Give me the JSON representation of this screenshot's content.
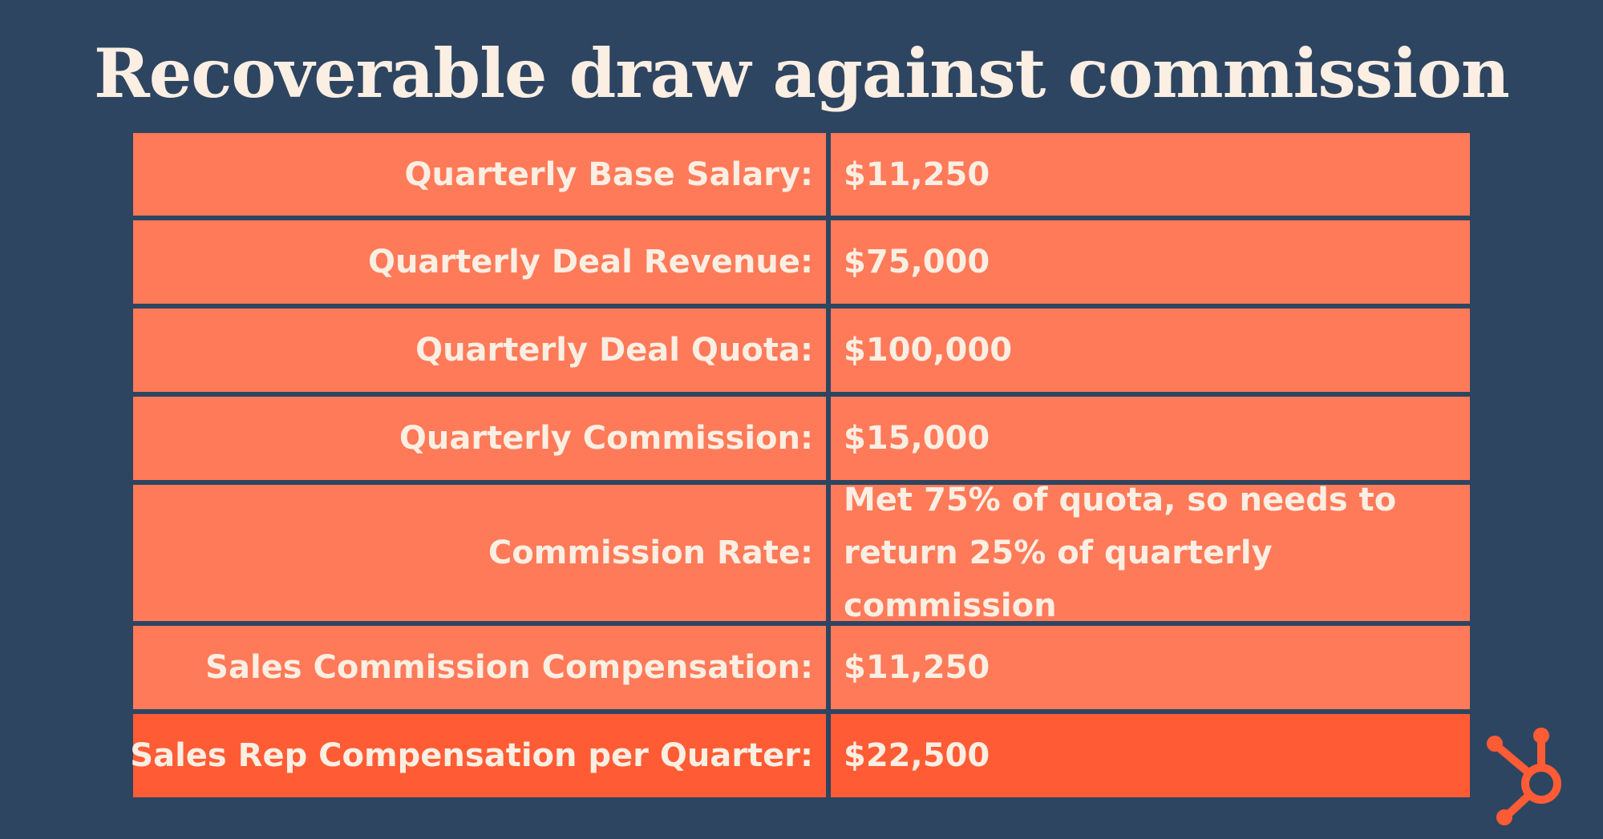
{
  "title": "Recoverable draw against commission",
  "rows": [
    {
      "label": "Quarterly Base Salary:",
      "value": "$11,250"
    },
    {
      "label": "Quarterly Deal Revenue:",
      "value": "$75,000"
    },
    {
      "label": "Quarterly Deal Quota:",
      "value": "$100,000"
    },
    {
      "label": "Quarterly Commission:",
      "value": "$15,000"
    },
    {
      "label": "Commission Rate:",
      "value": "Met 75% of quota, so needs to return 25% of quarterly commission"
    },
    {
      "label": "Sales Commission Compensation:",
      "value": "$11,250"
    },
    {
      "label": "Sales Rep Compensation per Quarter:",
      "value": "$22,500"
    }
  ],
  "colors": {
    "background": "#2d4561",
    "cell": "#ff7a59",
    "highlight_cell": "#ff5c35",
    "text": "#fbeee2"
  },
  "logo": {
    "icon": "hubspot-sprocket-icon"
  }
}
